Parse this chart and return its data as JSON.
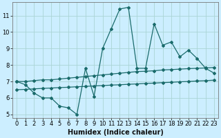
{
  "xlabel": "Humidex (Indice chaleur)",
  "background_color": "#cceeff",
  "grid_color": "#aad4d4",
  "line_color": "#1a6b6b",
  "x_values": [
    0,
    1,
    2,
    3,
    4,
    5,
    6,
    7,
    8,
    9,
    10,
    11,
    12,
    13,
    14,
    15,
    16,
    17,
    18,
    19,
    20,
    21,
    22,
    23
  ],
  "line1": [
    7.0,
    6.8,
    6.3,
    6.0,
    6.0,
    5.5,
    5.4,
    5.0,
    7.8,
    6.1,
    9.0,
    10.2,
    11.4,
    11.5,
    7.8,
    7.8,
    10.5,
    9.2,
    9.4,
    8.5,
    8.9,
    8.4,
    7.8,
    7.5
  ],
  "line2": [
    7.0,
    7.0,
    7.05,
    7.1,
    7.1,
    7.15,
    7.2,
    7.25,
    7.3,
    7.35,
    7.4,
    7.45,
    7.5,
    7.55,
    7.6,
    7.62,
    7.65,
    7.7,
    7.72,
    7.75,
    7.78,
    7.8,
    7.82,
    7.85
  ],
  "line3": [
    6.5,
    6.52,
    6.55,
    6.58,
    6.6,
    6.63,
    6.65,
    6.68,
    6.7,
    6.73,
    6.75,
    6.78,
    6.8,
    6.83,
    6.85,
    6.88,
    6.9,
    6.93,
    6.95,
    6.98,
    7.0,
    7.03,
    7.05,
    7.08
  ],
  "ylim_min": 4.8,
  "ylim_max": 11.8,
  "xlim_min": -0.5,
  "xlim_max": 23.5,
  "yticks": [
    5,
    6,
    7,
    8,
    9,
    10,
    11
  ],
  "xticks": [
    0,
    1,
    2,
    3,
    4,
    5,
    6,
    7,
    8,
    9,
    10,
    11,
    12,
    13,
    14,
    15,
    16,
    17,
    18,
    19,
    20,
    21,
    22,
    23
  ],
  "xlabel_fontsize": 7,
  "tick_fontsize": 6,
  "marker": "D",
  "marker_size": 2,
  "line_width": 0.9
}
